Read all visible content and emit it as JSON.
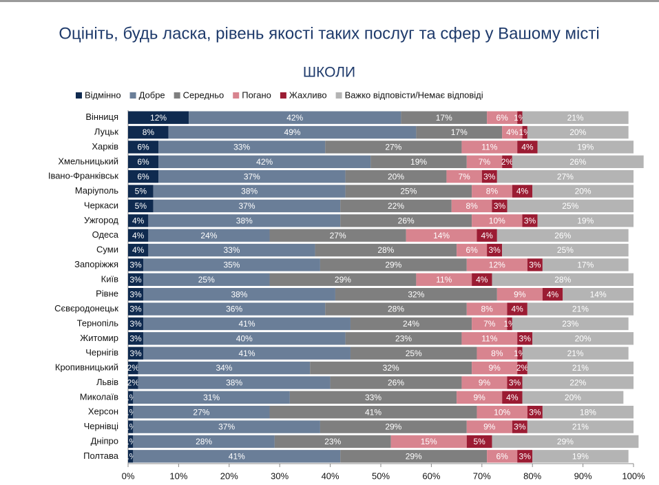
{
  "chart_data": {
    "type": "stacked-barh",
    "title": "Оцініть, будь ласка, рівень якості таких послуг та сфер у Вашому місті",
    "subtitle": "ШКОЛИ",
    "categories": [
      "Вінниця",
      "Луцьк",
      "Харків",
      "Хмельницький",
      "Івано-Франківськ",
      "Маріуполь",
      "Черкаси",
      "Ужгород",
      "Одеса",
      "Суми",
      "Запоріжжя",
      "Київ",
      "Рівне",
      "Сєвєродонецьк",
      "Тернопіль",
      "Житомир",
      "Чернігів",
      "Кропивницький",
      "Львів",
      "Миколаїв",
      "Херсон",
      "Чернівці",
      "Дніпро",
      "Полтава"
    ],
    "series": [
      {
        "name": "Відмінно",
        "color": "#0f2a4f",
        "label_color": "#ffffff",
        "values": [
          12,
          8,
          6,
          6,
          6,
          5,
          5,
          4,
          4,
          4,
          3,
          3,
          3,
          3,
          3,
          3,
          3,
          2,
          2,
          1,
          1,
          1,
          1,
          1
        ],
        "value_labels": [
          "12%",
          "8%",
          "6%",
          "6%",
          "6%",
          "5%",
          "5%",
          "4%",
          "4%",
          "4%",
          "3%",
          "3%",
          "3%",
          "3%",
          "3%",
          "3%",
          "3%",
          "2%",
          "2%",
          "1%",
          "1%",
          "1%",
          "1%",
          "1%"
        ]
      },
      {
        "name": "Добре",
        "color": "#6a7e98",
        "label_color": "#ffffff",
        "values": [
          42,
          49,
          33,
          42,
          37,
          38,
          37,
          38,
          24,
          33,
          35,
          25,
          38,
          36,
          41,
          40,
          41,
          34,
          38,
          31,
          27,
          37,
          28,
          41
        ],
        "value_labels": [
          "42%",
          "49%",
          "33%",
          "42%",
          "37%",
          "38%",
          "37%",
          "38%",
          "24%",
          "33%",
          "35%",
          "25%",
          "38%",
          "36%",
          "41%",
          "40%",
          "41%",
          "34%",
          "38%",
          "31%",
          "27%",
          "37%",
          "28%",
          "41%"
        ]
      },
      {
        "name": "Середньо",
        "color": "#7f7f7f",
        "label_color": "#ffffff",
        "values": [
          17,
          17,
          27,
          19,
          20,
          25,
          22,
          26,
          27,
          28,
          29,
          29,
          32,
          28,
          24,
          23,
          25,
          32,
          26,
          33,
          41,
          29,
          23,
          29
        ],
        "value_labels": [
          "17%",
          "17%",
          "27%",
          "19%",
          "20%",
          "25%",
          "22%",
          "26%",
          "27%",
          "28%",
          "29%",
          "29%",
          "32%",
          "28%",
          "24%",
          "23%",
          "25%",
          "32%",
          "26%",
          "33%",
          "41%",
          "29%",
          "23%",
          "29%"
        ]
      },
      {
        "name": "Погано",
        "color": "#d8848f",
        "label_color": "#ffffff",
        "values": [
          6,
          4,
          11,
          7,
          7,
          8,
          8,
          10,
          14,
          6,
          12,
          11,
          9,
          8,
          7,
          11,
          8,
          9,
          9,
          9,
          10,
          9,
          15,
          6
        ],
        "value_labels": [
          "6%",
          "4%",
          "11%",
          "7%",
          "7%",
          "8%",
          "8%",
          "10%",
          "14%",
          "6%",
          "12%",
          "11%",
          "9%",
          "8%",
          "7%",
          "11%",
          "8%",
          "9%",
          "9%",
          "9%",
          "10%",
          "9%",
          "15%",
          "6%"
        ]
      },
      {
        "name": "Жахливо",
        "color": "#9b1c33",
        "label_color": "#ffffff",
        "values": [
          1,
          1,
          4,
          2,
          3,
          4,
          3,
          3,
          4,
          3,
          3,
          4,
          4,
          4,
          1,
          3,
          1,
          2,
          3,
          4,
          3,
          3,
          5,
          3
        ],
        "value_labels": [
          "1%",
          "1%",
          "4%",
          "2%",
          "3%",
          "4%",
          "3%",
          "3%",
          "4%",
          "3%",
          "3%",
          "4%",
          "4%",
          "4%",
          "1%",
          "3%",
          "1%",
          "2%",
          "3%",
          "4%",
          "3%",
          "3%",
          "5%",
          "3%"
        ]
      },
      {
        "name": "Важко відповісти/Немає відповіді",
        "color": "#b4b4b4",
        "label_color": "#ffffff",
        "values": [
          21,
          20,
          19,
          26,
          27,
          20,
          25,
          19,
          26,
          25,
          17,
          28,
          14,
          21,
          23,
          20,
          21,
          21,
          22,
          20,
          18,
          21,
          29,
          19
        ],
        "value_labels": [
          "21%",
          "20%",
          "19%",
          "26%",
          "27%",
          "20%",
          "25%",
          "19%",
          "26%",
          "25%",
          "17%",
          "28%",
          "14%",
          "21%",
          "23%",
          "20%",
          "21%",
          "21%",
          "22%",
          "20%",
          "18%",
          "21%",
          "29%",
          "19%"
        ]
      }
    ],
    "xlim": [
      0,
      100
    ],
    "xticks": [
      {
        "value": 0,
        "label": "0%"
      },
      {
        "value": 10,
        "label": "10%"
      },
      {
        "value": 20,
        "label": "20%"
      },
      {
        "value": 30,
        "label": "30%"
      },
      {
        "value": 40,
        "label": "40%"
      },
      {
        "value": 50,
        "label": "50%"
      },
      {
        "value": 60,
        "label": "60%"
      },
      {
        "value": 70,
        "label": "70%"
      },
      {
        "value": 80,
        "label": "80%"
      },
      {
        "value": 90,
        "label": "90%"
      },
      {
        "value": 100,
        "label": "100%"
      }
    ]
  }
}
